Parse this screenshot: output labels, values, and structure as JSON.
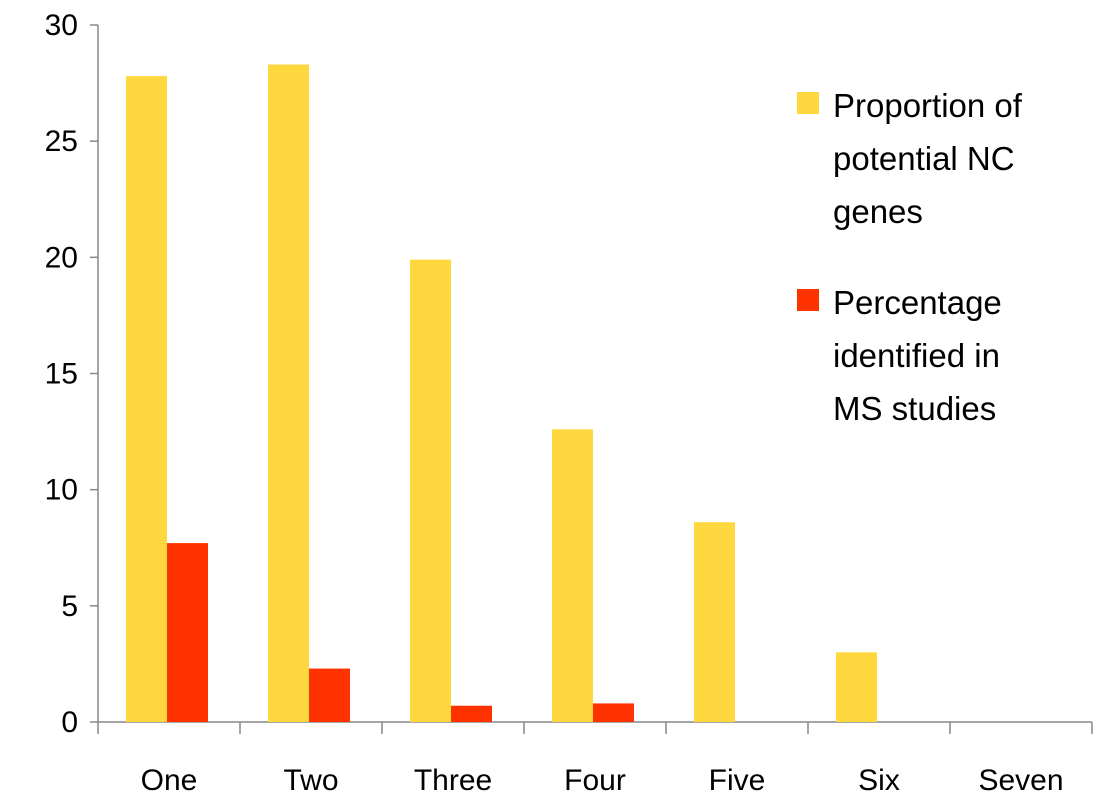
{
  "chart_data": {
    "type": "bar",
    "categories": [
      "One",
      "Two",
      "Three",
      "Four",
      "Five",
      "Six",
      "Seven"
    ],
    "series": [
      {
        "name": "Proportion of potential NC genes",
        "legend_lines": [
          "Proportion of",
          "potential NC",
          "genes"
        ],
        "color": "#FFD840",
        "values": [
          27.8,
          28.3,
          19.9,
          12.6,
          8.6,
          3.0,
          0
        ]
      },
      {
        "name": "Percentage identified in MS studies",
        "legend_lines": [
          "Percentage",
          "identified in",
          "MS studies"
        ],
        "color": "#FF3300",
        "values": [
          7.7,
          2.3,
          0.7,
          0.8,
          0,
          0,
          0
        ]
      }
    ],
    "ylim": [
      0,
      30
    ],
    "yticks": [
      0,
      5,
      10,
      15,
      20,
      25,
      30
    ],
    "grid": false,
    "legend_position": "top-right",
    "title": "",
    "xlabel": "",
    "ylabel": ""
  }
}
